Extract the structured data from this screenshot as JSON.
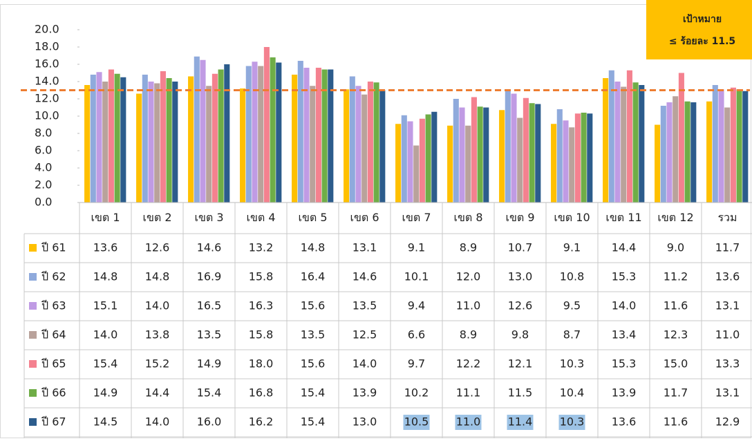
{
  "chart_data": {
    "type": "bar",
    "categories": [
      "เขต 1",
      "เขต 2",
      "เขต 3",
      "เขต 4",
      "เขต 5",
      "เขต 6",
      "เขต 7",
      "เขต 8",
      "เขต 9",
      "เขต 10",
      "เขต 11",
      "เขต 12",
      "รวม"
    ],
    "series": [
      {
        "name": "ปี 61",
        "color": "#ffc000",
        "values": [
          13.6,
          12.6,
          14.6,
          13.2,
          14.8,
          13.1,
          9.1,
          8.9,
          10.7,
          9.1,
          14.4,
          9.0,
          11.7
        ],
        "value_labels": [
          "13.6",
          "12.6",
          "14.6",
          "13.2",
          "14.8",
          "13.1",
          "9.1",
          "8.9",
          "10.7",
          "9.1",
          "14.4",
          "9.0",
          "11.7"
        ]
      },
      {
        "name": "ปี 62",
        "color": "#8faadc",
        "values": [
          14.8,
          14.8,
          16.9,
          15.8,
          16.4,
          14.6,
          10.1,
          12.0,
          13.0,
          10.8,
          15.3,
          11.2,
          13.6
        ],
        "value_labels": [
          "14.8",
          "14.8",
          "16.9",
          "15.8",
          "16.4",
          "14.6",
          "10.1",
          "12.0",
          "13.0",
          "10.8",
          "15.3",
          "11.2",
          "13.6"
        ]
      },
      {
        "name": "ปี 63",
        "color": "#c09be4",
        "values": [
          15.1,
          14.0,
          16.5,
          16.3,
          15.6,
          13.5,
          9.4,
          11.0,
          12.6,
          9.5,
          14.0,
          11.6,
          13.1
        ],
        "value_labels": [
          "15.1",
          "14.0",
          "16.5",
          "16.3",
          "15.6",
          "13.5",
          "9.4",
          "11.0",
          "12.6",
          "9.5",
          "14.0",
          "11.6",
          "13.1"
        ]
      },
      {
        "name": "ปี 64",
        "color": "#b9a29b",
        "values": [
          14.0,
          13.8,
          13.5,
          15.8,
          13.5,
          12.5,
          6.6,
          8.9,
          9.8,
          8.7,
          13.4,
          12.3,
          11.0
        ],
        "value_labels": [
          "14.0",
          "13.8",
          "13.5",
          "15.8",
          "13.5",
          "12.5",
          "6.6",
          "8.9",
          "9.8",
          "8.7",
          "13.4",
          "12.3",
          "11.0"
        ]
      },
      {
        "name": "ปี 65",
        "color": "#f4818f",
        "values": [
          15.4,
          15.2,
          14.9,
          18.0,
          15.6,
          14.0,
          9.7,
          12.2,
          12.1,
          10.3,
          15.3,
          15.0,
          13.3
        ],
        "value_labels": [
          "15.4",
          "15.2",
          "14.9",
          "18.0",
          "15.6",
          "14.0",
          "9.7",
          "12.2",
          "12.1",
          "10.3",
          "15.3",
          "15.0",
          "13.3"
        ]
      },
      {
        "name": "ปี 66",
        "color": "#6fad47",
        "values": [
          14.9,
          14.4,
          15.4,
          16.8,
          15.4,
          13.9,
          10.2,
          11.1,
          11.5,
          10.4,
          13.9,
          11.7,
          13.1
        ],
        "value_labels": [
          "14.9",
          "14.4",
          "15.4",
          "16.8",
          "15.4",
          "13.9",
          "10.2",
          "11.1",
          "11.5",
          "10.4",
          "13.9",
          "11.7",
          "13.1"
        ]
      },
      {
        "name": "ปี 67",
        "color": "#2c5c8c",
        "values": [
          14.5,
          14.0,
          16.0,
          16.2,
          15.4,
          13.0,
          10.5,
          11.0,
          11.4,
          10.3,
          13.6,
          11.6,
          12.9
        ],
        "value_labels": [
          "14.5",
          "14.0",
          "16.0",
          "16.2",
          "15.4",
          "13.0",
          "10.5",
          "11.0",
          "11.4",
          "10.3",
          "13.6",
          "11.6",
          "12.9"
        ]
      }
    ],
    "ylim": [
      0,
      20
    ],
    "yticks": [
      {
        "value": 0,
        "label": "0.0"
      },
      {
        "value": 2,
        "label": "2.0"
      },
      {
        "value": 4,
        "label": "4.0"
      },
      {
        "value": 6,
        "label": "6.0"
      },
      {
        "value": 8,
        "label": "8.0"
      },
      {
        "value": 10,
        "label": "10.0"
      },
      {
        "value": 12,
        "label": "12.0"
      },
      {
        "value": 14,
        "label": "14.0"
      },
      {
        "value": 16,
        "label": "16.0"
      },
      {
        "value": 18,
        "label": "18.0"
      },
      {
        "value": 20,
        "label": "20.0"
      }
    ],
    "reference_line": {
      "value": 13.0,
      "color": "#ed7d31"
    },
    "target_box": {
      "lines": [
        "เป้าหมาย",
        "≤ ร้อยละ 11.5"
      ],
      "color": "#ffc000"
    },
    "highlight": {
      "series": 6,
      "categories": [
        6,
        7,
        8,
        9
      ],
      "color": "#9dc3e6"
    }
  }
}
